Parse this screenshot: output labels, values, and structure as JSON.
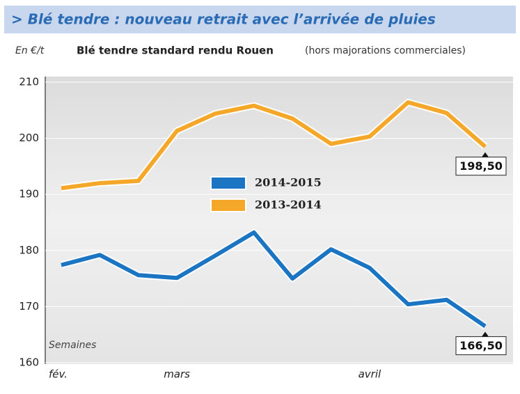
{
  "chart_data": {
    "type": "line",
    "title": "> Blé tendre : nouveau retrait avec l’arrivée de pluies",
    "subtitle": "Blé tendre standard rendu Rouen",
    "subtitle_note": "(hors majorations commerciales)",
    "y_label": "En €/t",
    "x_label": "Semaines",
    "categories": [
      "fév.",
      null,
      null,
      "mars",
      null,
      null,
      null,
      null,
      "avril",
      null,
      null,
      null
    ],
    "series": [
      {
        "name": "2014-2015",
        "color": "#1b75c2",
        "values": [
          177.4,
          179.2,
          175.6,
          175.1,
          179.1,
          183.2,
          175.0,
          180.2,
          176.9,
          170.4,
          171.2,
          166.5
        ],
        "value_labels": [
          null,
          null,
          null,
          null,
          null,
          null,
          null,
          null,
          null,
          null,
          null,
          "166,50"
        ]
      },
      {
        "name": "2013-2014",
        "color": "#f5a72a",
        "values": [
          191.1,
          192.0,
          192.4,
          201.3,
          204.4,
          205.8,
          203.5,
          199.0,
          200.3,
          206.4,
          204.5,
          198.5
        ],
        "value_labels": [
          null,
          null,
          null,
          null,
          null,
          null,
          null,
          null,
          null,
          null,
          null,
          "198,50"
        ]
      }
    ],
    "ylim": [
      160,
      210
    ],
    "yticks": [
      160,
      170,
      180,
      190,
      200,
      210
    ],
    "grid": true
  }
}
